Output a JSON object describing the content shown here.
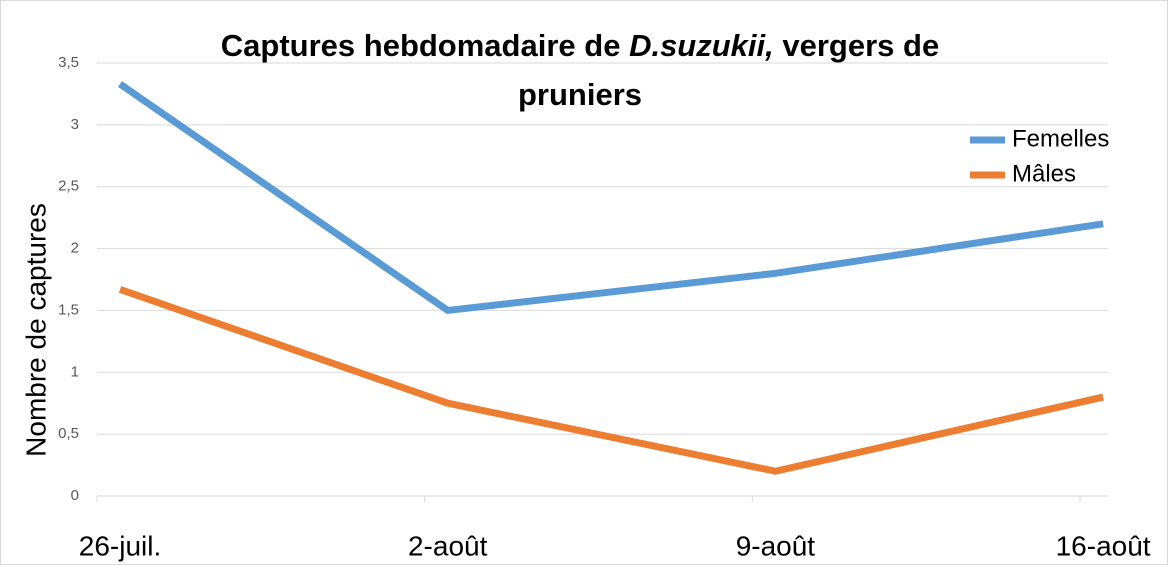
{
  "chart_data": {
    "type": "line",
    "title": [
      "Captures hebdomadaire de ",
      "D.suzukii,",
      " vergers de",
      "pruniers"
    ],
    "ylabel": "Nombre de captures",
    "categories": [
      "26-juil.",
      "2-août",
      "9-août",
      "16-août"
    ],
    "series": [
      {
        "name": "Femelles",
        "color": "#5b9bd5",
        "values": [
          3.33,
          1.5,
          1.8,
          2.2
        ]
      },
      {
        "name": "Mâles",
        "color": "#ed7d31",
        "values": [
          1.67,
          0.75,
          0.2,
          0.8
        ]
      }
    ],
    "ylim": [
      0,
      3.5
    ],
    "yticks": [
      0,
      {
        "value": 0.5,
        "label": "0,5"
      },
      1,
      {
        "value": 1.5,
        "label": "1,5"
      },
      2,
      {
        "value": 2.5,
        "label": "2,5"
      },
      3,
      {
        "value": 3.5,
        "label": "3,5"
      }
    ],
    "grid": true,
    "legend": "top-right"
  }
}
